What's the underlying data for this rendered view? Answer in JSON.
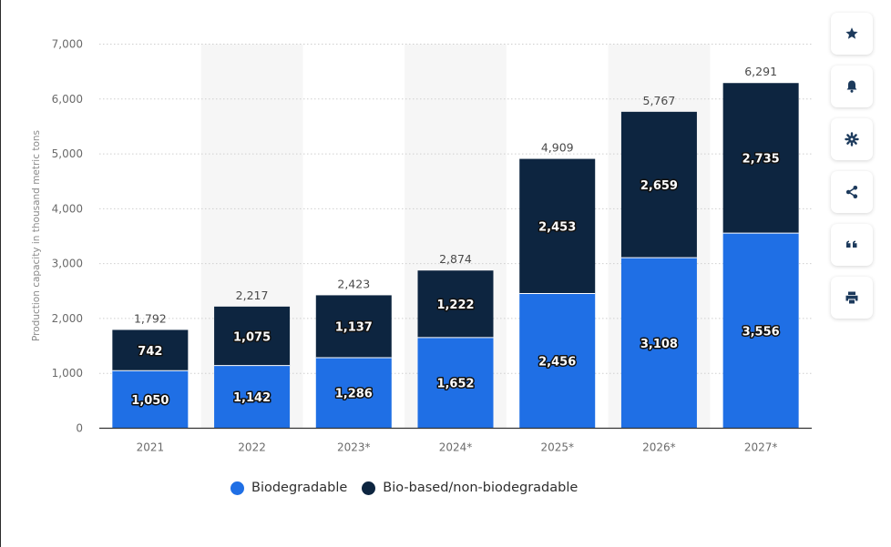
{
  "chart_data": {
    "type": "bar",
    "stacked": true,
    "categories": [
      "2021",
      "2022",
      "2023*",
      "2024*",
      "2025*",
      "2026*",
      "2027*"
    ],
    "series": [
      {
        "name": "Biodegradable",
        "color": "#1f6fe5",
        "values": [
          1050,
          1142,
          1286,
          1652,
          2456,
          3108,
          3556
        ],
        "labels": [
          "1,050",
          "1,142",
          "1,286",
          "1,652",
          "2,456",
          "3,108",
          "3,556"
        ]
      },
      {
        "name": "Bio-based/non-biodegradable",
        "color": "#0d2540",
        "values": [
          742,
          1075,
          1137,
          1222,
          2453,
          2659,
          2735
        ],
        "labels": [
          "742",
          "1,075",
          "1,137",
          "1,222",
          "2,453",
          "2,659",
          "2,735"
        ]
      }
    ],
    "totals": [
      1792,
      2217,
      2423,
      2874,
      4909,
      5767,
      6291
    ],
    "total_labels": [
      "1,792",
      "2,217",
      "2,423",
      "2,874",
      "4,909",
      "5,767",
      "6,291"
    ],
    "ylabel": "Production capacity in thousand metric tons",
    "xlabel": "",
    "ylim": [
      0,
      7000
    ],
    "yticks": [
      0,
      1000,
      2000,
      3000,
      4000,
      5000,
      6000,
      7000
    ],
    "ytick_labels": [
      "0",
      "1,000",
      "2,000",
      "3,000",
      "4,000",
      "5,000",
      "6,000",
      "7,000"
    ],
    "grid": true,
    "legend_position": "bottom"
  },
  "legend": {
    "items": [
      {
        "label": "Biodegradable",
        "color": "#1f6fe5"
      },
      {
        "label": "Bio-based/non-biodegradable",
        "color": "#0d2540"
      }
    ]
  },
  "toolbar": {
    "buttons": [
      {
        "name": "favorite-button",
        "icon": "star-icon"
      },
      {
        "name": "notification-button",
        "icon": "bell-icon"
      },
      {
        "name": "settings-button",
        "icon": "gear-icon"
      },
      {
        "name": "share-button",
        "icon": "share-icon"
      },
      {
        "name": "cite-button",
        "icon": "quote-icon"
      },
      {
        "name": "print-button",
        "icon": "printer-icon"
      }
    ],
    "icon_color": "#1c3a5c"
  }
}
